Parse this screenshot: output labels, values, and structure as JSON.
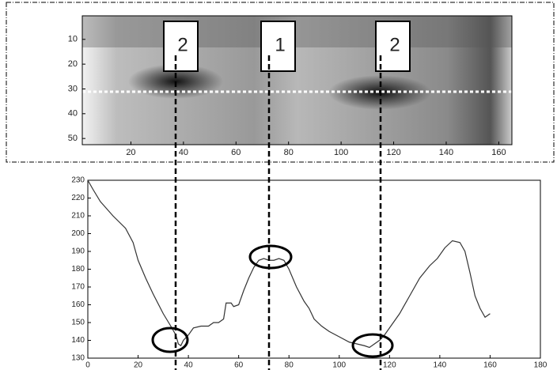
{
  "chart_data": [
    {
      "type": "image",
      "annotations": [
        "2",
        "1",
        "2"
      ],
      "xlim": [
        1.5,
        165
      ],
      "xticks": [
        20,
        40,
        60,
        80,
        100,
        120,
        140,
        160
      ],
      "ylim": [
        0.5,
        52.5
      ],
      "yticks": [
        10,
        20,
        30,
        40,
        50
      ]
    },
    {
      "type": "line",
      "x": [
        0,
        2,
        5,
        10,
        15,
        18,
        20,
        23,
        26,
        30,
        33,
        35,
        36,
        37,
        38,
        40,
        42,
        45,
        48,
        50,
        52,
        54,
        55,
        57,
        58,
        60,
        62,
        64,
        66,
        68,
        70,
        72,
        74,
        76,
        78,
        80,
        83,
        86,
        88,
        90,
        93,
        96,
        100,
        104,
        107,
        110,
        112,
        114,
        116,
        118,
        120,
        124,
        128,
        132,
        136,
        139,
        142,
        145,
        148,
        150,
        152,
        154,
        156,
        158,
        160
      ],
      "values": [
        230,
        225,
        218,
        210,
        203,
        195,
        185,
        175,
        166,
        155,
        148,
        143,
        138,
        137,
        140,
        143,
        147,
        148,
        148,
        150,
        150,
        152,
        161,
        161,
        159,
        160,
        168,
        175,
        181,
        185,
        186,
        185,
        185,
        186,
        185,
        180,
        170,
        162,
        158,
        152,
        148,
        145,
        142,
        139,
        138,
        137,
        136,
        138,
        140,
        143,
        147,
        155,
        165,
        175,
        182,
        186,
        192,
        196,
        195,
        190,
        178,
        165,
        158,
        153,
        155
      ],
      "color": "#333333",
      "xlim": [
        0,
        180
      ],
      "xticks": [
        0,
        20,
        40,
        60,
        80,
        100,
        120,
        140,
        160,
        180
      ],
      "ylim": [
        130,
        230
      ],
      "yticks": [
        130,
        140,
        150,
        160,
        170,
        180,
        190,
        200,
        210,
        220,
        230
      ]
    }
  ]
}
